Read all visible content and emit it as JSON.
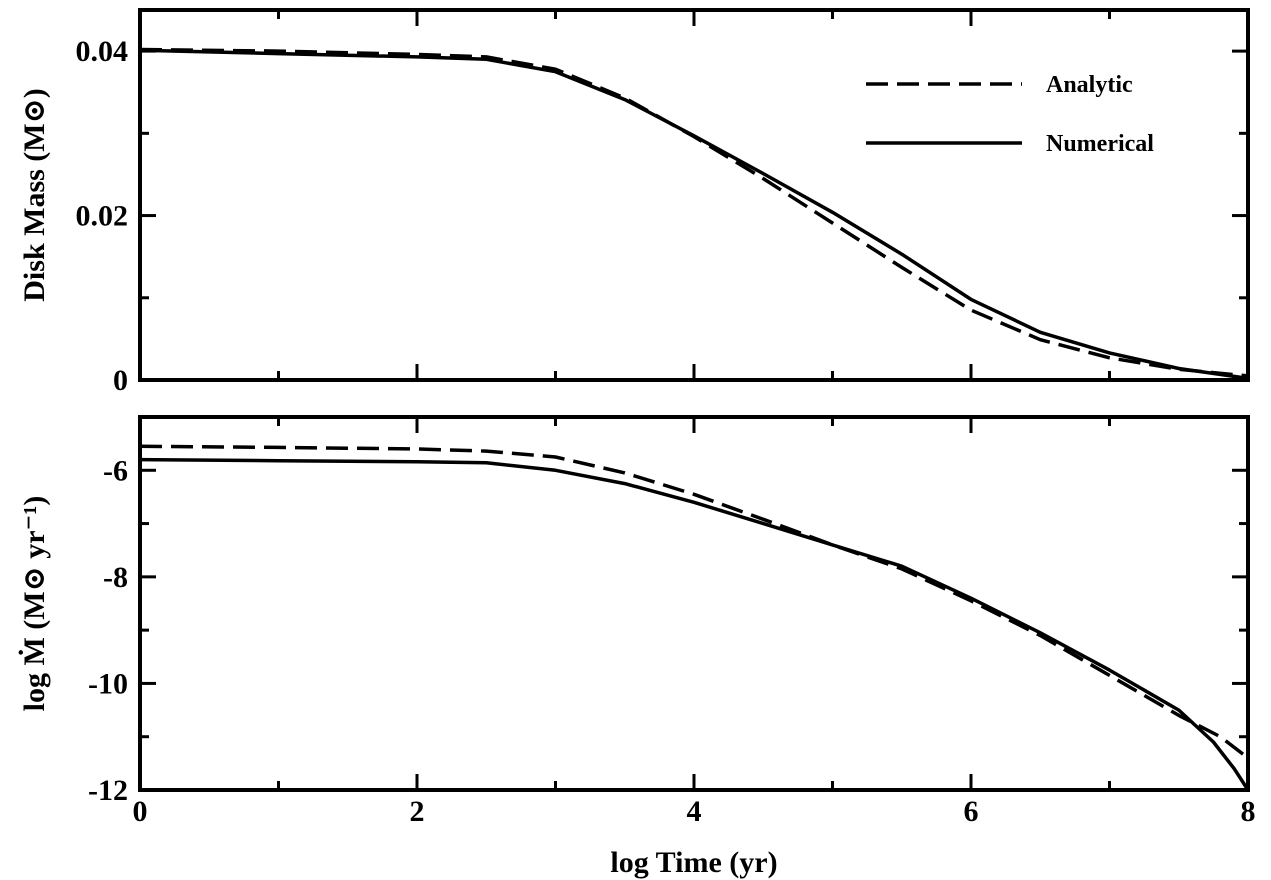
{
  "chart_data": [
    {
      "type": "line",
      "ylabel": "Disk Mass (M⊙)",
      "xlabel": "",
      "xlim": [
        0,
        8
      ],
      "ylim": [
        0,
        0.045
      ],
      "yticks": [
        0,
        0.02,
        0.04
      ],
      "ytick_labels": [
        "0",
        "0.02",
        "0.04"
      ],
      "grid": false,
      "legend_position": "top-right",
      "series": [
        {
          "name": "Analytic",
          "style": "dashed",
          "x": [
            0,
            1,
            2,
            2.5,
            3,
            3.5,
            4,
            4.5,
            5,
            5.5,
            6,
            6.5,
            7,
            7.5,
            8
          ],
          "y": [
            0.0402,
            0.04,
            0.0396,
            0.0393,
            0.0378,
            0.0343,
            0.0296,
            0.0245,
            0.0191,
            0.0137,
            0.0085,
            0.0049,
            0.0027,
            0.0013,
            0.0005
          ]
        },
        {
          "name": "Numerical",
          "style": "solid",
          "x": [
            0,
            1,
            2,
            2.5,
            3,
            3.5,
            4,
            4.5,
            5,
            5.5,
            6,
            6.5,
            7,
            7.5,
            8
          ],
          "y": [
            0.0401,
            0.0397,
            0.0393,
            0.039,
            0.0375,
            0.0341,
            0.0297,
            0.0251,
            0.0204,
            0.0153,
            0.0098,
            0.0058,
            0.0033,
            0.0014,
            0.0002
          ]
        }
      ]
    },
    {
      "type": "line",
      "ylabel": "log Ṁ (M⊙ yr⁻¹)",
      "xlabel": "log Time (yr)",
      "xlim": [
        0,
        8
      ],
      "ylim": [
        -12,
        -5
      ],
      "yticks": [
        -12,
        -10,
        -8,
        -6
      ],
      "ytick_labels": [
        "-12",
        "-10",
        "-8",
        "-6"
      ],
      "xticks": [
        0,
        2,
        4,
        6,
        8
      ],
      "xtick_labels": [
        "0",
        "2",
        "4",
        "6",
        "8"
      ],
      "grid": false,
      "series": [
        {
          "name": "Analytic",
          "style": "dashed",
          "x": [
            0,
            1,
            2,
            2.5,
            3,
            3.5,
            4,
            4.5,
            5,
            5.5,
            6,
            6.5,
            7,
            7.5,
            7.8,
            8
          ],
          "y": [
            -5.55,
            -5.57,
            -5.6,
            -5.64,
            -5.75,
            -6.05,
            -6.45,
            -6.92,
            -7.4,
            -7.85,
            -8.45,
            -9.1,
            -9.85,
            -10.6,
            -11.0,
            -11.4
          ]
        },
        {
          "name": "Numerical",
          "style": "solid",
          "x": [
            0,
            1,
            2,
            2.5,
            3,
            3.5,
            4,
            4.5,
            5,
            5.5,
            6,
            6.5,
            7,
            7.5,
            7.75,
            7.9,
            8
          ],
          "y": [
            -5.8,
            -5.82,
            -5.84,
            -5.86,
            -6.0,
            -6.25,
            -6.6,
            -7.0,
            -7.4,
            -7.8,
            -8.4,
            -9.05,
            -9.75,
            -10.5,
            -11.1,
            -11.6,
            -12.0
          ]
        }
      ]
    }
  ]
}
